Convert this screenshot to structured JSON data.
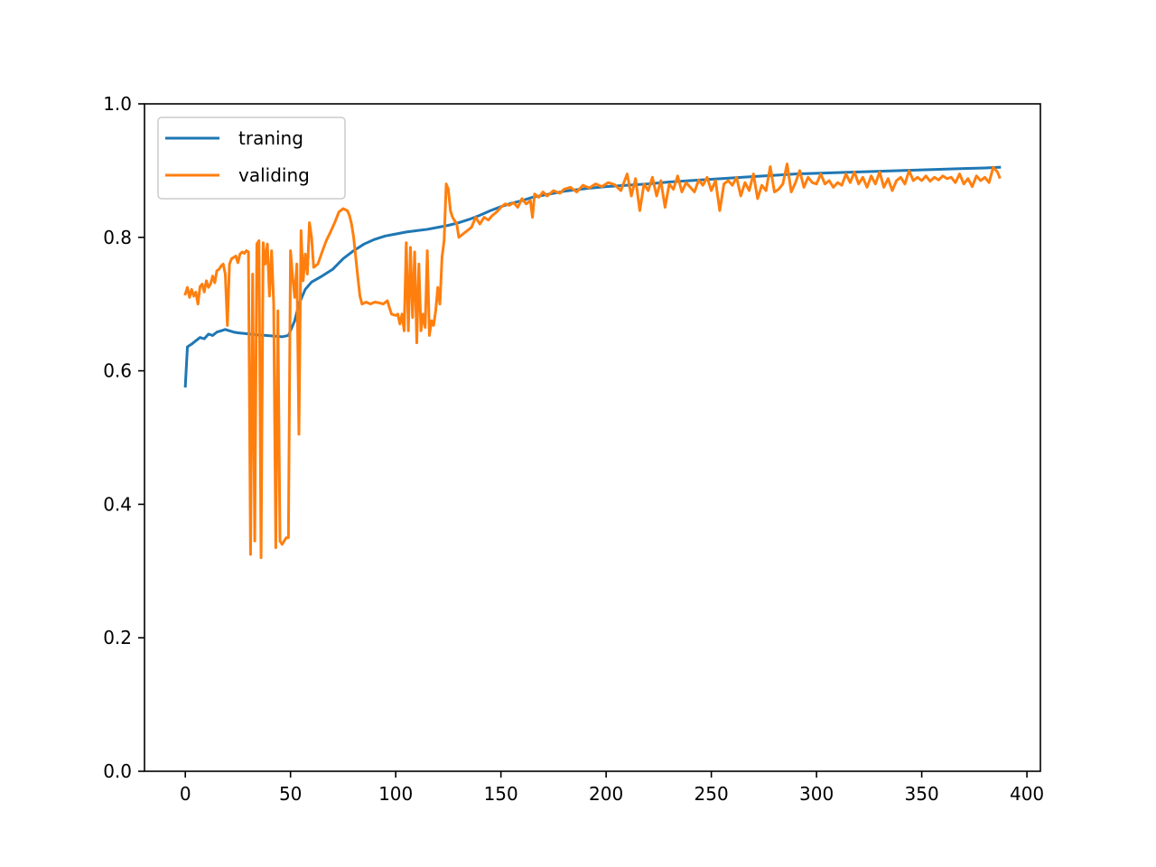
{
  "chart_data": {
    "type": "line",
    "title": "",
    "xlabel": "",
    "ylabel": "",
    "xlim": [
      -19.4,
      406.4
    ],
    "ylim": [
      0.0,
      1.0
    ],
    "xticks": [
      0,
      50,
      100,
      150,
      200,
      250,
      300,
      350,
      400
    ],
    "xtick_labels": [
      "0",
      "50",
      "100",
      "150",
      "200",
      "250",
      "300",
      "350",
      "400"
    ],
    "yticks": [
      0.0,
      0.2,
      0.4,
      0.6,
      0.8,
      1.0
    ],
    "ytick_labels": [
      "0.0",
      "0.2",
      "0.4",
      "0.6",
      "0.8",
      "1.0"
    ],
    "grid": false,
    "legend_position": "upper-left",
    "series": [
      {
        "name": "traning",
        "color": "#1f77b4",
        "points": [
          [
            0,
            0.577
          ],
          [
            1,
            0.636
          ],
          [
            3,
            0.64
          ],
          [
            5,
            0.645
          ],
          [
            7,
            0.65
          ],
          [
            9,
            0.648
          ],
          [
            11,
            0.655
          ],
          [
            13,
            0.653
          ],
          [
            15,
            0.658
          ],
          [
            17,
            0.66
          ],
          [
            19,
            0.662
          ],
          [
            21,
            0.66
          ],
          [
            23,
            0.658
          ],
          [
            25,
            0.657
          ],
          [
            28,
            0.656
          ],
          [
            31,
            0.655
          ],
          [
            34,
            0.654
          ],
          [
            38,
            0.653
          ],
          [
            42,
            0.652
          ],
          [
            46,
            0.651
          ],
          [
            49,
            0.653
          ],
          [
            52,
            0.675
          ],
          [
            54,
            0.7
          ],
          [
            57,
            0.722
          ],
          [
            60,
            0.733
          ],
          [
            65,
            0.742
          ],
          [
            70,
            0.752
          ],
          [
            75,
            0.768
          ],
          [
            80,
            0.78
          ],
          [
            85,
            0.79
          ],
          [
            90,
            0.797
          ],
          [
            95,
            0.802
          ],
          [
            100,
            0.805
          ],
          [
            105,
            0.808
          ],
          [
            110,
            0.81
          ],
          [
            115,
            0.812
          ],
          [
            120,
            0.815
          ],
          [
            125,
            0.818
          ],
          [
            130,
            0.822
          ],
          [
            135,
            0.827
          ],
          [
            140,
            0.833
          ],
          [
            145,
            0.84
          ],
          [
            150,
            0.846
          ],
          [
            155,
            0.851
          ],
          [
            160,
            0.855
          ],
          [
            165,
            0.86
          ],
          [
            170,
            0.863
          ],
          [
            175,
            0.866
          ],
          [
            180,
            0.869
          ],
          [
            185,
            0.871
          ],
          [
            190,
            0.873
          ],
          [
            200,
            0.876
          ],
          [
            210,
            0.878
          ],
          [
            220,
            0.88
          ],
          [
            230,
            0.883
          ],
          [
            240,
            0.885
          ],
          [
            250,
            0.887
          ],
          [
            260,
            0.889
          ],
          [
            270,
            0.891
          ],
          [
            280,
            0.893
          ],
          [
            290,
            0.895
          ],
          [
            300,
            0.896
          ],
          [
            310,
            0.897
          ],
          [
            320,
            0.898
          ],
          [
            330,
            0.899
          ],
          [
            340,
            0.9
          ],
          [
            350,
            0.901
          ],
          [
            360,
            0.902
          ],
          [
            370,
            0.903
          ],
          [
            380,
            0.904
          ],
          [
            387,
            0.905
          ]
        ]
      },
      {
        "name": "validing",
        "color": "#ff7f0e",
        "points": [
          [
            0,
            0.715
          ],
          [
            1,
            0.725
          ],
          [
            2,
            0.71
          ],
          [
            3,
            0.722
          ],
          [
            4,
            0.712
          ],
          [
            5,
            0.718
          ],
          [
            6,
            0.7
          ],
          [
            7,
            0.726
          ],
          [
            8,
            0.73
          ],
          [
            9,
            0.718
          ],
          [
            10,
            0.735
          ],
          [
            11,
            0.725
          ],
          [
            12,
            0.73
          ],
          [
            13,
            0.742
          ],
          [
            14,
            0.732
          ],
          [
            15,
            0.75
          ],
          [
            16,
            0.752
          ],
          [
            17,
            0.757
          ],
          [
            18,
            0.76
          ],
          [
            19,
            0.745
          ],
          [
            20,
            0.668
          ],
          [
            21,
            0.76
          ],
          [
            22,
            0.768
          ],
          [
            23,
            0.77
          ],
          [
            24,
            0.772
          ],
          [
            25,
            0.762
          ],
          [
            26,
            0.775
          ],
          [
            27,
            0.778
          ],
          [
            28,
            0.776
          ],
          [
            29,
            0.78
          ],
          [
            30,
            0.778
          ],
          [
            31,
            0.325
          ],
          [
            32,
            0.745
          ],
          [
            33,
            0.345
          ],
          [
            34,
            0.79
          ],
          [
            35,
            0.795
          ],
          [
            36,
            0.32
          ],
          [
            37,
            0.792
          ],
          [
            38,
            0.76
          ],
          [
            39,
            0.79
          ],
          [
            40,
            0.712
          ],
          [
            41,
            0.78
          ],
          [
            42,
            0.7
          ],
          [
            43,
            0.335
          ],
          [
            44,
            0.69
          ],
          [
            45,
            0.345
          ],
          [
            46,
            0.34
          ],
          [
            47,
            0.345
          ],
          [
            48,
            0.35
          ],
          [
            49,
            0.35
          ],
          [
            50,
            0.78
          ],
          [
            51,
            0.74
          ],
          [
            52,
            0.71
          ],
          [
            53,
            0.76
          ],
          [
            54,
            0.505
          ],
          [
            55,
            0.81
          ],
          [
            56,
            0.735
          ],
          [
            57,
            0.775
          ],
          [
            58,
            0.745
          ],
          [
            59,
            0.822
          ],
          [
            60,
            0.8
          ],
          [
            61,
            0.755
          ],
          [
            63,
            0.76
          ],
          [
            65,
            0.778
          ],
          [
            67,
            0.795
          ],
          [
            69,
            0.808
          ],
          [
            71,
            0.822
          ],
          [
            73,
            0.838
          ],
          [
            75,
            0.843
          ],
          [
            77,
            0.84
          ],
          [
            78,
            0.833
          ],
          [
            79,
            0.82
          ],
          [
            80,
            0.8
          ],
          [
            81,
            0.77
          ],
          [
            82,
            0.74
          ],
          [
            83,
            0.712
          ],
          [
            84,
            0.7
          ],
          [
            86,
            0.703
          ],
          [
            88,
            0.7
          ],
          [
            90,
            0.703
          ],
          [
            92,
            0.702
          ],
          [
            94,
            0.7
          ],
          [
            96,
            0.705
          ],
          [
            98,
            0.685
          ],
          [
            100,
            0.683
          ],
          [
            101,
            0.685
          ],
          [
            102,
            0.67
          ],
          [
            103,
            0.685
          ],
          [
            104,
            0.66
          ],
          [
            105,
            0.792
          ],
          [
            106,
            0.66
          ],
          [
            107,
            0.785
          ],
          [
            108,
            0.68
          ],
          [
            109,
            0.778
          ],
          [
            110,
            0.642
          ],
          [
            111,
            0.76
          ],
          [
            112,
            0.66
          ],
          [
            113,
            0.685
          ],
          [
            114,
            0.665
          ],
          [
            115,
            0.78
          ],
          [
            116,
            0.653
          ],
          [
            117,
            0.675
          ],
          [
            118,
            0.668
          ],
          [
            119,
            0.69
          ],
          [
            120,
            0.725
          ],
          [
            121,
            0.7
          ],
          [
            122,
            0.77
          ],
          [
            123,
            0.795
          ],
          [
            124,
            0.88
          ],
          [
            125,
            0.872
          ],
          [
            126,
            0.84
          ],
          [
            127,
            0.83
          ],
          [
            128,
            0.825
          ],
          [
            129,
            0.82
          ],
          [
            130,
            0.8
          ],
          [
            132,
            0.805
          ],
          [
            134,
            0.81
          ],
          [
            136,
            0.815
          ],
          [
            138,
            0.83
          ],
          [
            140,
            0.82
          ],
          [
            142,
            0.83
          ],
          [
            144,
            0.826
          ],
          [
            146,
            0.833
          ],
          [
            148,
            0.838
          ],
          [
            150,
            0.845
          ],
          [
            152,
            0.85
          ],
          [
            154,
            0.848
          ],
          [
            156,
            0.852
          ],
          [
            158,
            0.845
          ],
          [
            160,
            0.858
          ],
          [
            162,
            0.85
          ],
          [
            164,
            0.855
          ],
          [
            165,
            0.83
          ],
          [
            166,
            0.865
          ],
          [
            168,
            0.86
          ],
          [
            170,
            0.868
          ],
          [
            172,
            0.862
          ],
          [
            175,
            0.87
          ],
          [
            178,
            0.866
          ],
          [
            180,
            0.872
          ],
          [
            183,
            0.875
          ],
          [
            186,
            0.868
          ],
          [
            189,
            0.878
          ],
          [
            192,
            0.874
          ],
          [
            195,
            0.88
          ],
          [
            198,
            0.876
          ],
          [
            201,
            0.882
          ],
          [
            204,
            0.879
          ],
          [
            207,
            0.87
          ],
          [
            210,
            0.895
          ],
          [
            212,
            0.862
          ],
          [
            214,
            0.888
          ],
          [
            216,
            0.84
          ],
          [
            218,
            0.88
          ],
          [
            220,
            0.87
          ],
          [
            222,
            0.89
          ],
          [
            224,
            0.862
          ],
          [
            226,
            0.885
          ],
          [
            228,
            0.845
          ],
          [
            230,
            0.88
          ],
          [
            232,
            0.872
          ],
          [
            234,
            0.892
          ],
          [
            236,
            0.868
          ],
          [
            238,
            0.882
          ],
          [
            240,
            0.875
          ],
          [
            242,
            0.868
          ],
          [
            244,
            0.886
          ],
          [
            246,
            0.878
          ],
          [
            248,
            0.89
          ],
          [
            250,
            0.87
          ],
          [
            252,
            0.885
          ],
          [
            254,
            0.84
          ],
          [
            256,
            0.88
          ],
          [
            258,
            0.885
          ],
          [
            260,
            0.878
          ],
          [
            262,
            0.89
          ],
          [
            264,
            0.862
          ],
          [
            266,
            0.882
          ],
          [
            268,
            0.87
          ],
          [
            270,
            0.895
          ],
          [
            272,
            0.858
          ],
          [
            274,
            0.878
          ],
          [
            276,
            0.87
          ],
          [
            278,
            0.906
          ],
          [
            280,
            0.868
          ],
          [
            282,
            0.872
          ],
          [
            284,
            0.88
          ],
          [
            286,
            0.91
          ],
          [
            288,
            0.868
          ],
          [
            290,
            0.882
          ],
          [
            292,
            0.9
          ],
          [
            294,
            0.875
          ],
          [
            296,
            0.89
          ],
          [
            298,
            0.882
          ],
          [
            300,
            0.88
          ],
          [
            302,
            0.895
          ],
          [
            304,
            0.88
          ],
          [
            306,
            0.885
          ],
          [
            308,
            0.875
          ],
          [
            310,
            0.882
          ],
          [
            312,
            0.878
          ],
          [
            314,
            0.895
          ],
          [
            316,
            0.882
          ],
          [
            318,
            0.898
          ],
          [
            320,
            0.88
          ],
          [
            322,
            0.89
          ],
          [
            324,
            0.875
          ],
          [
            326,
            0.892
          ],
          [
            328,
            0.88
          ],
          [
            330,
            0.898
          ],
          [
            332,
            0.875
          ],
          [
            334,
            0.888
          ],
          [
            336,
            0.87
          ],
          [
            338,
            0.885
          ],
          [
            340,
            0.89
          ],
          [
            342,
            0.88
          ],
          [
            344,
            0.9
          ],
          [
            346,
            0.885
          ],
          [
            348,
            0.89
          ],
          [
            350,
            0.885
          ],
          [
            352,
            0.892
          ],
          [
            354,
            0.884
          ],
          [
            356,
            0.89
          ],
          [
            358,
            0.886
          ],
          [
            360,
            0.892
          ],
          [
            362,
            0.888
          ],
          [
            364,
            0.89
          ],
          [
            366,
            0.882
          ],
          [
            368,
            0.895
          ],
          [
            370,
            0.88
          ],
          [
            372,
            0.888
          ],
          [
            374,
            0.876
          ],
          [
            376,
            0.892
          ],
          [
            378,
            0.885
          ],
          [
            380,
            0.89
          ],
          [
            382,
            0.882
          ],
          [
            384,
            0.905
          ],
          [
            386,
            0.898
          ],
          [
            387,
            0.89
          ]
        ]
      }
    ]
  }
}
